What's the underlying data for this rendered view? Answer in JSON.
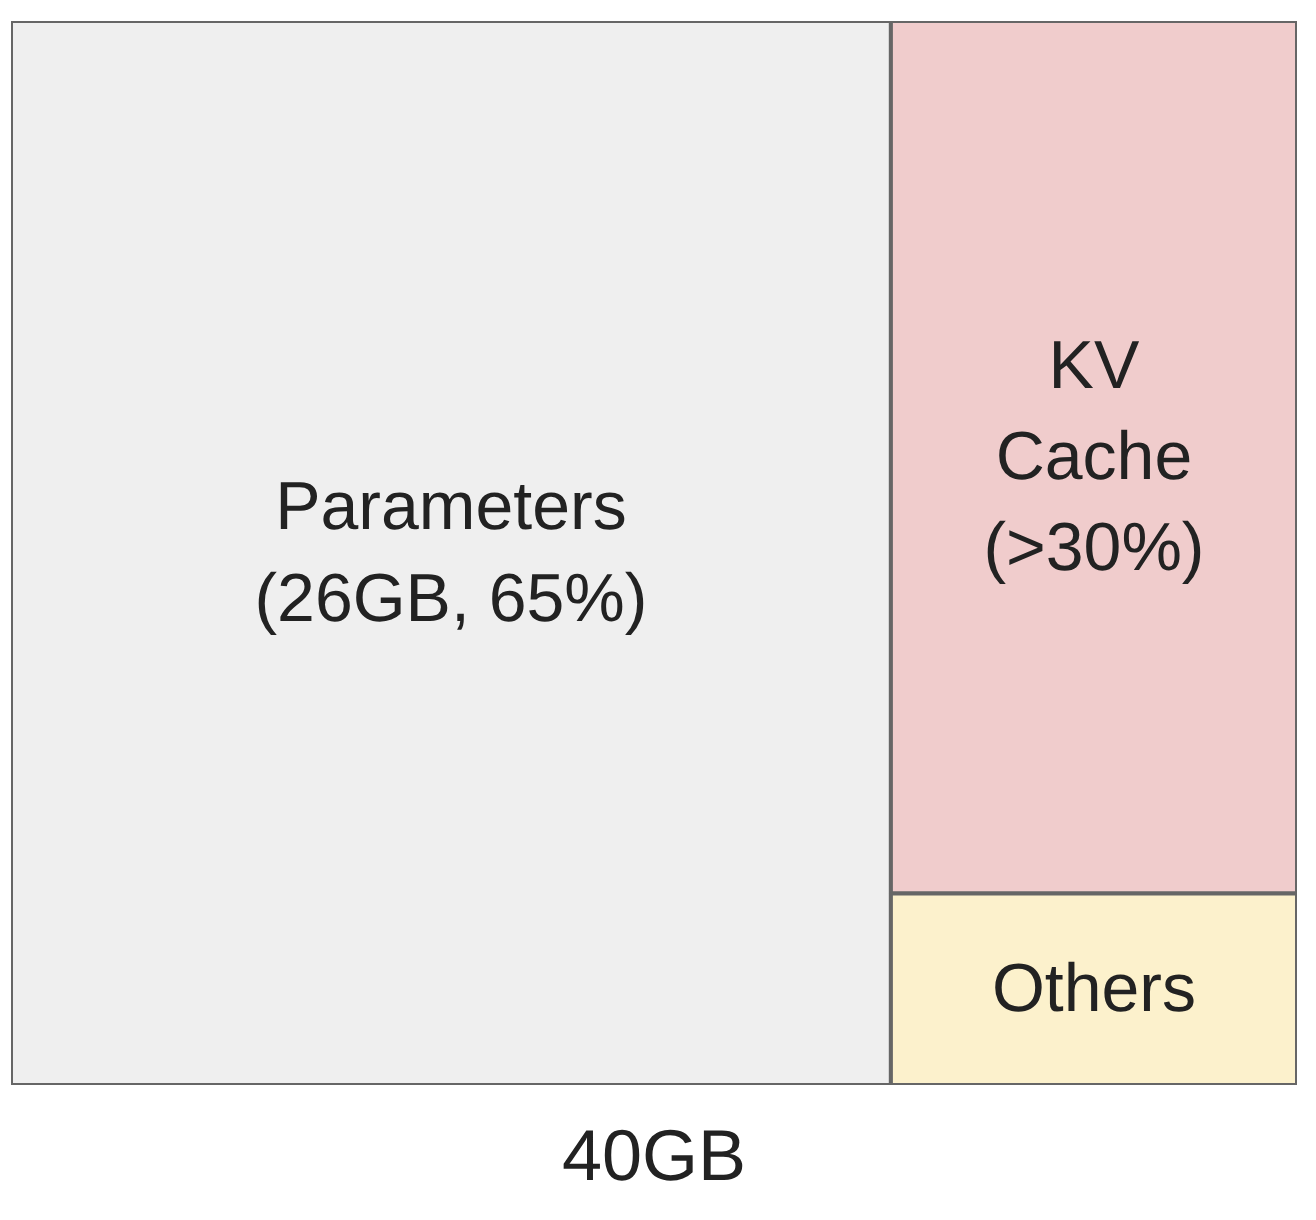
{
  "chart_data": {
    "type": "other",
    "title": "40GB",
    "categories": [
      "Parameters",
      "KV Cache",
      "Others"
    ],
    "values": [
      65,
      30,
      null
    ],
    "value_labels": [
      "(26GB, 65%)",
      "(>30%)",
      null
    ],
    "colors": [
      "#efefef",
      "#f0cccc",
      "#fcf1cc"
    ]
  }
}
